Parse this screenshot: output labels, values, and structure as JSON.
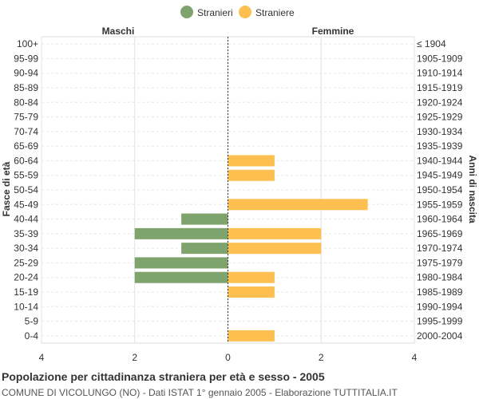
{
  "chart_data": {
    "type": "bar",
    "orientation": "horizontal-pyramid",
    "title": "Popolazione per cittadinanza straniera per età e sesso - 2005",
    "subtitle": "COMUNE DI VICOLUNGO (NO) - Dati ISTAT 1° gennaio 2005 - Elaborazione TUTTITALIA.IT",
    "ylabel_left": "Fasce di età",
    "ylabel_right": "Anni di nascita",
    "left_header": "Maschi",
    "right_header": "Femmine",
    "xlim": [
      -4,
      4
    ],
    "x_ticks": [
      -4,
      -2,
      0,
      2,
      4
    ],
    "x_tick_labels": [
      "4",
      "2",
      "0",
      "2",
      "4"
    ],
    "grid": true,
    "legend_position": "top-center",
    "categories": [
      "100+",
      "95-99",
      "90-94",
      "85-89",
      "80-84",
      "75-79",
      "70-74",
      "65-69",
      "60-64",
      "55-59",
      "50-54",
      "45-49",
      "40-44",
      "35-39",
      "30-34",
      "25-29",
      "20-24",
      "15-19",
      "10-14",
      "5-9",
      "0-4"
    ],
    "birth_years": [
      "≤ 1904",
      "1905-1909",
      "1910-1914",
      "1915-1919",
      "1920-1924",
      "1925-1929",
      "1930-1934",
      "1935-1939",
      "1940-1944",
      "1945-1949",
      "1950-1954",
      "1955-1959",
      "1960-1964",
      "1965-1969",
      "1970-1974",
      "1975-1979",
      "1980-1984",
      "1985-1989",
      "1990-1994",
      "1995-1999",
      "2000-2004"
    ],
    "series": [
      {
        "name": "Stranieri",
        "color": "#7fa36d",
        "side": "left",
        "values": [
          0,
          0,
          0,
          0,
          0,
          0,
          0,
          0,
          0,
          0,
          0,
          0,
          1,
          2,
          1,
          2,
          2,
          0,
          0,
          0,
          0
        ]
      },
      {
        "name": "Straniere",
        "color": "#fdbf4f",
        "side": "right",
        "values": [
          0,
          0,
          0,
          0,
          0,
          0,
          0,
          0,
          1,
          1,
          0,
          3,
          0,
          2,
          2,
          0,
          1,
          1,
          0,
          0,
          1
        ]
      }
    ]
  }
}
